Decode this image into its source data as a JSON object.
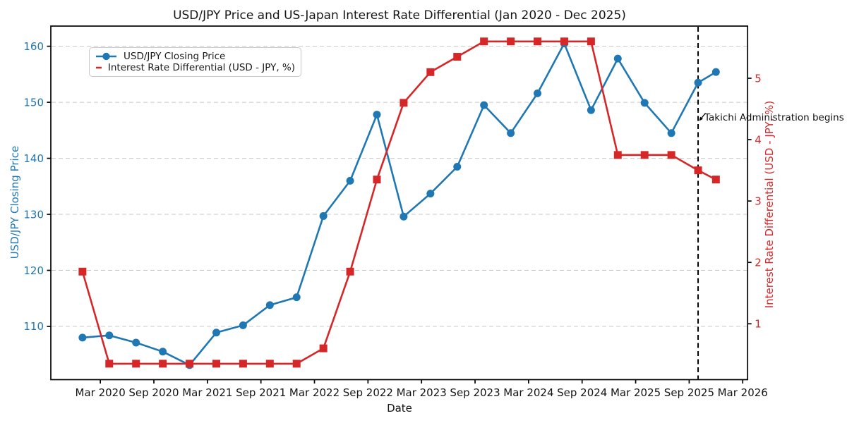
{
  "title": "USD/JPY Price and US-Japan Interest Rate Differential (Jan 2020 - Dec 2025)",
  "colors": {
    "price_blue": "#1f77b4",
    "rate_red": "#d62728",
    "grid_gray": "#c9c9c9",
    "axis_black": "#000000",
    "text_dark": "#151515"
  },
  "chart_data": {
    "type": "line",
    "title": "USD/JPY Price and US-Japan Interest Rate Differential (Jan 2020 - Dec 2025)",
    "xlabel": "Date",
    "ylabel_left": "USD/JPY Closing Price",
    "ylabel_right": "Interest Rate Differential (USD - JPY, %)",
    "x": [
      "Jan 2020",
      "Apr 2020",
      "Jul 2020",
      "Oct 2020",
      "Jan 2021",
      "Apr 2021",
      "Jul 2021",
      "Oct 2021",
      "Jan 2022",
      "Apr 2022",
      "Jul 2022",
      "Oct 2022",
      "Jan 2023",
      "Apr 2023",
      "Jul 2023",
      "Oct 2023",
      "Jan 2024",
      "Apr 2024",
      "Jul 2024",
      "Oct 2024",
      "Jan 2025",
      "Apr 2025",
      "Jul 2025",
      "Oct 2025",
      "Dec 2025"
    ],
    "month_index": [
      0,
      3,
      6,
      9,
      12,
      15,
      18,
      21,
      24,
      27,
      30,
      33,
      36,
      39,
      42,
      45,
      48,
      51,
      54,
      57,
      60,
      63,
      66,
      69,
      71
    ],
    "series": [
      {
        "name": "USD/JPY Closing Price",
        "axis": "left",
        "color": "#1f77b4",
        "marker": "circle",
        "values": [
          108.0,
          108.4,
          107.1,
          105.5,
          103.1,
          108.9,
          110.2,
          113.8,
          115.2,
          129.7,
          136.0,
          147.8,
          129.6,
          133.7,
          138.5,
          149.5,
          144.5,
          151.6,
          160.5,
          148.6,
          157.8,
          149.9,
          144.5,
          153.5,
          155.4
        ]
      },
      {
        "name": "Interest Rate Differential (USD - JPY, %)",
        "axis": "right",
        "color": "#d62728",
        "marker": "square",
        "values": [
          1.85,
          0.35,
          0.35,
          0.35,
          0.35,
          0.35,
          0.35,
          0.35,
          0.35,
          0.6,
          1.85,
          3.35,
          4.6,
          5.1,
          5.35,
          5.6,
          5.6,
          5.6,
          5.6,
          5.6,
          3.75,
          3.75,
          3.75,
          3.5,
          3.35
        ]
      }
    ],
    "x_ticks": [
      "Mar 2020",
      "Sep 2020",
      "Mar 2021",
      "Sep 2021",
      "Mar 2022",
      "Sep 2022",
      "Mar 2023",
      "Sep 2023",
      "Mar 2024",
      "Sep 2024",
      "Mar 2025",
      "Sep 2025",
      "Mar 2026"
    ],
    "x_tick_month_index": [
      2,
      8,
      14,
      20,
      26,
      32,
      38,
      44,
      50,
      56,
      62,
      68,
      74
    ],
    "y_ticks_left": [
      110,
      120,
      130,
      140,
      150,
      160
    ],
    "y_ticks_right": [
      1,
      2,
      3,
      4,
      5
    ],
    "xlim_months": [
      -3.55,
      74.55
    ],
    "ylim_left": [
      100.5,
      163.6
    ],
    "ylim_right": [
      0.09,
      5.85
    ],
    "grid": "horizontal-dashed",
    "legend_position": "upper-left",
    "vline": {
      "x_month": 69,
      "style": "black-dashed"
    },
    "annotation": {
      "text": "Takichi Administration begins",
      "x_month": 69
    }
  },
  "legend": {
    "items": [
      "USD/JPY Closing Price",
      "Interest Rate Differential (USD - JPY, %)"
    ]
  }
}
